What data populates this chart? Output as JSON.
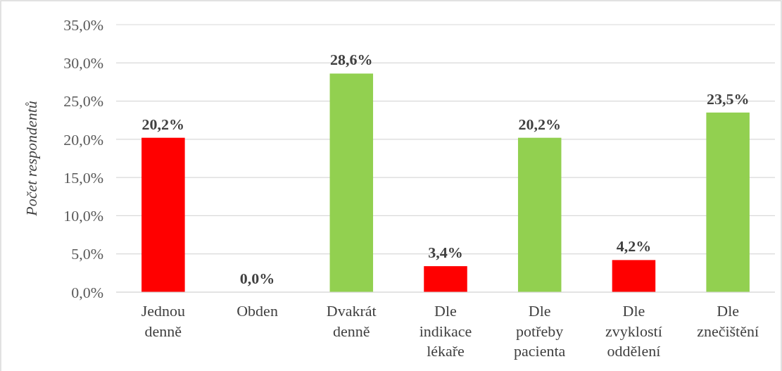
{
  "chart_data": {
    "type": "bar",
    "ylabel": "Počet respondentů",
    "categories": [
      "Jednou\ndenně",
      "Obden",
      "Dvakrát\ndenně",
      "Dle\nindikace\nlékaře",
      "Dle\npotřeby\npacienta",
      "Dle\nzvyklostí\noddělení",
      "Dle\nznečištění"
    ],
    "values": [
      20.2,
      0.0,
      28.6,
      3.4,
      20.2,
      4.2,
      23.5
    ],
    "colors": [
      "#ff0000",
      "#ff0000",
      "#92d050",
      "#ff0000",
      "#92d050",
      "#ff0000",
      "#92d050"
    ],
    "value_labels": [
      "20,2%",
      "0,0%",
      "28,6%",
      "3,4%",
      "20,2%",
      "4,2%",
      "23,5%"
    ],
    "ylim": [
      0,
      35
    ],
    "yticks": [
      {
        "value": 0,
        "label": "0,0%"
      },
      {
        "value": 5,
        "label": "5,0%"
      },
      {
        "value": 10,
        "label": "10,0%"
      },
      {
        "value": 15,
        "label": "15,0%"
      },
      {
        "value": 20,
        "label": "20,0%"
      },
      {
        "value": 25,
        "label": "25,0%"
      },
      {
        "value": 30,
        "label": "30,0%"
      },
      {
        "value": 35,
        "label": "35,0%"
      }
    ],
    "grid": "y"
  }
}
